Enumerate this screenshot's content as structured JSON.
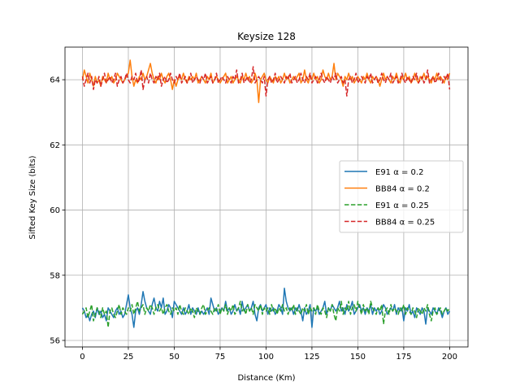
{
  "chart_data": {
    "type": "line",
    "title": "Keysize 128",
    "xlabel": "Distance (Km)",
    "ylabel": "Sifted Key Size (bits)",
    "xlim": [
      -9.5,
      210
    ],
    "ylim": [
      55.8,
      65
    ],
    "xticks": [
      0,
      25,
      50,
      75,
      100,
      125,
      150,
      175,
      200
    ],
    "yticks": [
      56,
      58,
      60,
      62,
      64
    ],
    "grid": true,
    "legend_position": "center-right",
    "x": {
      "start": 0,
      "end": 200,
      "step": 1
    },
    "series": [
      {
        "name": "E91 α = 0.2",
        "color": "#1f77b4",
        "dash": "solid",
        "values": [
          57.0,
          56.9,
          56.7,
          56.8,
          56.6,
          56.8,
          56.9,
          56.7,
          57.0,
          56.8,
          56.9,
          56.7,
          56.8,
          56.6,
          57.0,
          56.9,
          56.8,
          56.7,
          56.9,
          57.0,
          56.8,
          56.9,
          56.7,
          56.8,
          57.1,
          57.4,
          57.0,
          56.8,
          56.4,
          56.9,
          57.0,
          56.8,
          57.1,
          57.5,
          57.2,
          57.0,
          56.9,
          56.8,
          57.1,
          57.3,
          57.0,
          56.9,
          57.2,
          57.0,
          57.3,
          56.8,
          56.9,
          57.1,
          57.0,
          56.7,
          57.2,
          57.1,
          57.0,
          56.9,
          56.8,
          57.0,
          56.8,
          56.9,
          57.1,
          56.8,
          57.0,
          56.9,
          56.8,
          57.0,
          56.8,
          56.9,
          56.8,
          56.9,
          57.0,
          56.8,
          57.3,
          57.1,
          56.9,
          57.0,
          56.8,
          56.9,
          57.0,
          56.9,
          57.2,
          56.9,
          57.0,
          56.8,
          56.9,
          57.1,
          56.9,
          57.0,
          56.8,
          57.2,
          56.9,
          57.0,
          57.1,
          56.9,
          57.0,
          57.2,
          56.8,
          56.6,
          57.0,
          57.1,
          56.9,
          57.0,
          57.1,
          56.8,
          57.0,
          56.9,
          57.0,
          56.8,
          56.9,
          57.1,
          57.0,
          56.8,
          57.6,
          57.2,
          57.0,
          56.9,
          57.0,
          56.8,
          57.0,
          56.9,
          57.1,
          56.9,
          56.6,
          57.0,
          56.8,
          56.9,
          57.1,
          56.4,
          57.0,
          56.9,
          57.0,
          56.8,
          56.9,
          57.0,
          57.2,
          56.8,
          57.0,
          56.9,
          57.1,
          57.0,
          56.9,
          57.0,
          57.2,
          56.9,
          57.0,
          56.8,
          57.1,
          56.9,
          57.0,
          57.2,
          56.8,
          56.9,
          57.0,
          57.1,
          56.9,
          57.0,
          56.8,
          57.0,
          56.9,
          57.1,
          56.8,
          57.0,
          56.9,
          57.0,
          56.8,
          56.9,
          57.1,
          57.0,
          56.8,
          56.9,
          57.0,
          56.9,
          57.1,
          56.8,
          57.0,
          56.9,
          57.0,
          56.6,
          57.0,
          56.9,
          57.1,
          56.8,
          56.9,
          56.7,
          57.0,
          56.9,
          56.8,
          57.0,
          56.9,
          56.5,
          57.0,
          56.9,
          56.8,
          57.0,
          56.9,
          56.8,
          57.0,
          56.9,
          56.7,
          56.9,
          57.0,
          56.8,
          56.9
        ]
      },
      {
        "name": "BB84 α = 0.2",
        "color": "#ff7f0e",
        "dash": "solid",
        "values": [
          64.0,
          64.3,
          64.1,
          63.9,
          64.2,
          64.0,
          63.8,
          64.1,
          63.9,
          64.0,
          63.8,
          64.1,
          64.0,
          63.9,
          64.2,
          64.0,
          64.1,
          63.9,
          64.0,
          64.2,
          64.1,
          64.0,
          63.9,
          64.0,
          64.1,
          64.2,
          64.6,
          64.1,
          63.8,
          64.0,
          63.9,
          64.1,
          64.0,
          64.2,
          64.0,
          64.1,
          64.3,
          64.5,
          64.2,
          64.0,
          63.9,
          64.1,
          64.0,
          64.2,
          64.0,
          63.9,
          64.1,
          64.2,
          64.0,
          63.7,
          64.0,
          63.8,
          64.0,
          64.1,
          64.0,
          64.2,
          64.0,
          63.9,
          64.1,
          64.0,
          64.1,
          64.0,
          64.2,
          63.9,
          64.0,
          64.1,
          64.0,
          63.9,
          64.1,
          64.0,
          64.2,
          63.9,
          64.0,
          64.1,
          64.0,
          63.9,
          64.0,
          64.1,
          64.2,
          63.9,
          64.0,
          64.1,
          63.9,
          64.0,
          64.1,
          64.0,
          63.9,
          64.1,
          64.0,
          64.2,
          64.0,
          64.1,
          63.9,
          64.0,
          64.2,
          64.0,
          63.3,
          64.0,
          64.1,
          64.2,
          64.0,
          63.9,
          64.1,
          64.0,
          63.9,
          64.1,
          64.0,
          64.1,
          63.9,
          64.0,
          64.2,
          64.0,
          64.1,
          63.9,
          64.0,
          64.1,
          64.0,
          64.1,
          64.2,
          63.9,
          64.0,
          64.3,
          64.0,
          63.9,
          64.1,
          64.0,
          64.2,
          64.0,
          64.1,
          63.9,
          64.0,
          64.3,
          64.1,
          64.0,
          64.2,
          64.0,
          64.1,
          64.5,
          64.0,
          64.2,
          64.1,
          64.0,
          63.8,
          64.1,
          64.0,
          64.2,
          64.0,
          64.1,
          63.9,
          64.0,
          64.1,
          64.0,
          63.9,
          64.1,
          64.0,
          64.2,
          64.0,
          63.9,
          64.1,
          64.0,
          64.1,
          64.0,
          63.8,
          64.0,
          64.2,
          64.0,
          64.1,
          64.0,
          63.9,
          64.1,
          64.0,
          64.2,
          64.0,
          63.9,
          64.1,
          64.0,
          64.2,
          64.0,
          64.1,
          63.9,
          64.0,
          64.2,
          64.0,
          63.9,
          64.1,
          64.0,
          64.2,
          64.0,
          64.1,
          64.0,
          63.9,
          64.1,
          64.0,
          64.2,
          64.0,
          64.1,
          64.0,
          63.9,
          64.1,
          64.0,
          64.2
        ]
      },
      {
        "name": "E91 α = 0.25",
        "color": "#2ca02c",
        "dash": "dashed",
        "values": [
          56.8,
          56.9,
          57.0,
          56.7,
          56.9,
          57.1,
          56.6,
          56.8,
          57.0,
          56.9,
          56.7,
          57.0,
          56.8,
          56.9,
          56.4,
          56.9,
          57.0,
          56.8,
          56.7,
          56.9,
          57.1,
          56.8,
          57.0,
          56.9,
          56.8,
          57.0,
          56.9,
          57.1,
          56.8,
          57.0,
          57.2,
          56.9,
          57.0,
          57.1,
          56.8,
          57.0,
          56.9,
          57.1,
          57.0,
          56.8,
          57.0,
          57.1,
          56.9,
          57.0,
          56.8,
          57.0,
          57.1,
          56.9,
          56.8,
          57.0,
          56.9,
          57.0,
          56.8,
          57.1,
          56.9,
          56.8,
          57.0,
          56.9,
          56.8,
          57.0,
          56.9,
          56.7,
          57.0,
          56.9,
          56.8,
          57.0,
          57.1,
          56.8,
          56.9,
          57.0,
          56.9,
          56.8,
          57.0,
          56.9,
          57.1,
          56.8,
          57.0,
          56.9,
          57.1,
          56.8,
          57.0,
          56.9,
          57.1,
          56.8,
          56.9,
          57.0,
          57.2,
          56.9,
          57.0,
          56.8,
          57.1,
          56.9,
          57.0,
          56.8,
          57.1,
          57.0,
          56.9,
          57.1,
          56.8,
          57.0,
          56.9,
          57.0,
          56.8,
          57.1,
          56.9,
          57.0,
          56.8,
          57.0,
          56.9,
          57.1,
          56.9,
          57.0,
          56.8,
          57.0,
          56.9,
          57.1,
          56.8,
          57.0,
          56.9,
          56.8,
          57.0,
          56.9,
          57.1,
          56.8,
          57.0,
          56.9,
          57.0,
          56.8,
          57.1,
          56.9,
          56.8,
          57.0,
          56.9,
          56.7,
          57.0,
          56.9,
          57.1,
          56.8,
          56.6,
          57.0,
          56.9,
          57.2,
          56.8,
          57.0,
          56.9,
          57.2,
          56.8,
          57.0,
          57.1,
          56.9,
          57.2,
          57.0,
          56.8,
          57.1,
          56.9,
          57.0,
          56.8,
          57.2,
          57.0,
          56.9,
          56.8,
          57.0,
          56.9,
          57.1,
          56.5,
          56.9,
          57.0,
          56.8,
          57.1,
          56.9,
          57.0,
          56.9,
          56.8,
          57.0,
          56.9,
          57.1,
          56.8,
          57.0,
          56.9,
          56.8,
          57.0,
          56.9,
          56.7,
          57.0,
          56.9,
          56.8,
          57.0,
          56.9,
          57.1,
          56.8,
          56.6,
          56.9,
          57.0,
          56.8,
          56.9,
          57.0,
          56.8,
          56.9,
          57.0,
          56.9,
          57.0
        ]
      },
      {
        "name": "BB84 α = 0.25",
        "color": "#d62728",
        "dash": "dashed",
        "values": [
          64.1,
          63.8,
          64.0,
          64.2,
          63.9,
          64.1,
          63.7,
          64.0,
          63.9,
          64.1,
          63.8,
          64.0,
          64.2,
          63.9,
          64.0,
          64.1,
          63.9,
          64.0,
          64.2,
          63.8,
          64.0,
          64.1,
          63.9,
          64.0,
          64.2,
          64.0,
          63.9,
          64.1,
          64.0,
          64.2,
          63.9,
          64.0,
          64.3,
          63.7,
          64.0,
          64.1,
          63.9,
          64.2,
          64.0,
          63.9,
          64.1,
          64.0,
          64.2,
          63.8,
          64.0,
          64.1,
          63.9,
          64.0,
          64.2,
          64.0,
          63.9,
          64.1,
          64.0,
          64.2,
          63.9,
          64.0,
          64.1,
          63.9,
          64.0,
          64.2,
          63.9,
          64.0,
          64.1,
          64.0,
          63.9,
          64.1,
          64.0,
          64.2,
          63.9,
          64.0,
          64.1,
          63.9,
          64.0,
          64.2,
          63.9,
          64.0,
          64.1,
          64.0,
          63.9,
          64.1,
          64.0,
          63.9,
          64.1,
          64.0,
          64.3,
          63.9,
          64.0,
          64.2,
          63.9,
          64.0,
          64.1,
          63.9,
          64.0,
          64.4,
          63.9,
          64.0,
          64.1,
          64.0,
          63.9,
          64.1,
          63.5,
          64.0,
          64.1,
          63.9,
          64.0,
          64.2,
          63.9,
          64.0,
          64.1,
          64.0,
          63.9,
          64.1,
          64.0,
          64.2,
          63.9,
          64.0,
          64.1,
          63.9,
          64.0,
          64.2,
          64.0,
          63.9,
          64.1,
          64.0,
          64.2,
          63.9,
          64.0,
          64.1,
          63.9,
          64.0,
          64.2,
          64.0,
          63.9,
          64.1,
          64.0,
          63.9,
          64.1,
          64.0,
          64.2,
          63.9,
          64.0,
          64.1,
          63.9,
          64.0,
          63.5,
          64.0,
          64.1,
          63.9,
          64.0,
          64.2,
          63.9,
          64.0,
          64.1,
          64.0,
          63.9,
          64.1,
          64.0,
          64.2,
          63.9,
          64.0,
          64.1,
          63.9,
          64.0,
          64.2,
          64.0,
          63.9,
          64.1,
          64.0,
          64.2,
          63.9,
          64.0,
          64.1,
          63.9,
          64.0,
          64.2,
          64.0,
          63.9,
          64.1,
          64.0,
          63.9,
          64.1,
          64.0,
          64.2,
          63.9,
          64.0,
          64.1,
          63.9,
          64.0,
          64.3,
          63.9,
          64.0,
          64.1,
          63.9,
          64.0,
          64.2,
          64.0,
          63.9,
          64.1,
          64.0,
          64.2,
          63.7
        ]
      }
    ]
  }
}
